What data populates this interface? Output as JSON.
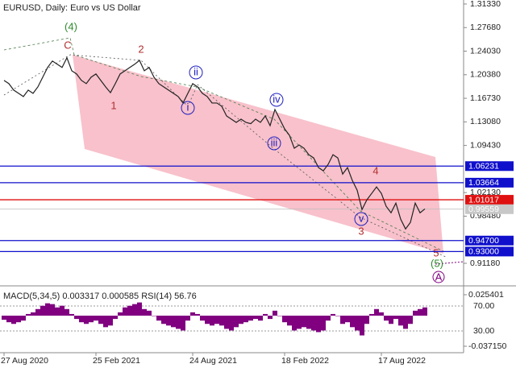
{
  "chart_data": [
    {
      "type": "line",
      "title": "EURUSD, Daily:  Euro vs US Dollar",
      "color": "#222222",
      "categories": [
        "27 Aug 2020",
        null,
        null,
        null,
        null,
        null,
        null,
        null,
        null,
        null,
        null,
        null,
        null,
        null,
        null,
        null,
        null,
        null,
        null,
        "25 Feb 2021",
        null,
        null,
        null,
        null,
        null,
        null,
        null,
        null,
        null,
        null,
        null,
        null,
        null,
        null,
        null,
        null,
        null,
        null,
        null,
        "24 Aug 2021",
        null,
        null,
        null,
        null,
        null,
        null,
        null,
        null,
        null,
        null,
        null,
        null,
        null,
        null,
        null,
        null,
        null,
        null,
        "18 Feb 2022",
        null,
        null,
        null,
        null,
        null,
        null,
        null,
        null,
        null,
        null,
        null,
        null,
        null,
        null,
        null,
        null,
        null,
        null,
        null,
        "17 Aug 2022",
        null,
        null,
        null,
        null,
        null,
        null,
        null,
        null,
        null
      ],
      "values": [
        1.195,
        1.19,
        1.18,
        1.175,
        1.17,
        1.18,
        1.175,
        1.185,
        1.2,
        1.215,
        1.225,
        1.22,
        1.215,
        1.23,
        1.21,
        1.205,
        1.195,
        1.19,
        1.2,
        1.205,
        1.195,
        1.185,
        1.176,
        1.19,
        1.205,
        1.21,
        1.215,
        1.22,
        1.226,
        1.21,
        1.215,
        1.2,
        1.19,
        1.185,
        1.18,
        1.175,
        1.17,
        1.16,
        1.175,
        1.19,
        1.185,
        1.175,
        1.17,
        1.16,
        1.16,
        1.155,
        1.14,
        1.135,
        1.13,
        1.135,
        1.13,
        1.128,
        1.135,
        1.13,
        1.14,
        1.125,
        1.15,
        1.135,
        1.12,
        1.11,
        1.09,
        1.095,
        1.09,
        1.08,
        1.075,
        1.06,
        1.055,
        1.065,
        1.08,
        1.075,
        1.05,
        1.06,
        1.04,
        1.025,
        0.995,
        1.01,
        1.02,
        1.03,
        1.02,
        1.0,
        0.99,
        1.005,
        0.98,
        0.965,
        0.975,
        1.005,
        0.99,
        0.996
      ],
      "ylim": [
        0.8806,
        1.3195
      ],
      "yticks": [
        {
          "value": 1.3133,
          "label": "1.31330"
        },
        {
          "value": 1.2768,
          "label": "1.27680"
        },
        {
          "value": 1.2403,
          "label": "1.24030"
        },
        {
          "value": 1.2038,
          "label": "1.20380"
        },
        {
          "value": 1.1673,
          "label": "1.16730"
        },
        {
          "value": 1.1308,
          "label": "1.13080"
        },
        {
          "value": 1.0943,
          "label": "1.09430"
        },
        {
          "value": 1.0213,
          "label": "1.02130"
        },
        {
          "value": 0.9848,
          "label": "0.98480"
        },
        {
          "value": 0.9118,
          "label": "0.91180"
        }
      ],
      "levels": [
        {
          "value": 1.06231,
          "label": "1.06231",
          "color": "#1010cc"
        },
        {
          "value": 1.03664,
          "label": "1.03664",
          "color": "#1010cc"
        },
        {
          "value": 1.01017,
          "label": "1.01017",
          "color": "#e01010"
        },
        {
          "value": 0.947,
          "label": "0.94700",
          "color": "#1010cc"
        },
        {
          "value": 0.93,
          "label": "0.93000",
          "color": "#1010cc"
        }
      ],
      "current": {
        "value": 0.99559,
        "label": "0.99559"
      },
      "waves": [
        "(4)",
        "C",
        "2",
        "1",
        "ii",
        "i",
        "iv",
        "iii",
        "4",
        "v",
        "3",
        "5",
        "(5)",
        "A"
      ]
    },
    {
      "type": "bar",
      "title": "MACD(5,34,5) 0.003317 0.000585 RSI(14) 56.76",
      "color": "#800080",
      "values": [
        -0.005,
        -0.008,
        -0.01,
        -0.008,
        -0.006,
        0.002,
        0.004,
        0.008,
        0.012,
        0.015,
        0.014,
        0.01,
        0.012,
        0.008,
        0.002,
        -0.004,
        -0.008,
        -0.01,
        -0.008,
        -0.006,
        -0.01,
        -0.014,
        -0.012,
        -0.004,
        0.004,
        0.01,
        0.012,
        0.014,
        0.016,
        0.008,
        0.006,
        0,
        -0.006,
        -0.01,
        -0.012,
        -0.014,
        -0.016,
        -0.018,
        -0.006,
        0.004,
        0.002,
        -0.006,
        -0.01,
        -0.012,
        -0.01,
        -0.012,
        -0.016,
        -0.018,
        -0.014,
        -0.01,
        -0.008,
        -0.006,
        -0.004,
        -0.006,
        0.002,
        -0.004,
        0.006,
        0,
        -0.008,
        -0.012,
        -0.018,
        -0.016,
        -0.014,
        -0.016,
        -0.018,
        -0.02,
        -0.018,
        -0.006,
        0.002,
        0,
        -0.01,
        -0.008,
        -0.014,
        -0.018,
        -0.024,
        -0.01,
        0.002,
        0.008,
        0.004,
        -0.006,
        -0.01,
        -0.004,
        -0.012,
        -0.016,
        -0.01,
        0.006,
        0.008,
        0.01
      ],
      "ylim": [
        -0.044,
        0.0342
      ],
      "yticks": [
        {
          "value": 0.025401,
          "label": "0.025401"
        },
        {
          "value": -0.03715,
          "label": "-0.037150"
        }
      ],
      "y2lim": [
        -3.5,
        99.7
      ],
      "y2ticks": [
        {
          "value": 70,
          "label": "70.00"
        },
        {
          "value": 30,
          "label": "30.00"
        }
      ]
    }
  ]
}
